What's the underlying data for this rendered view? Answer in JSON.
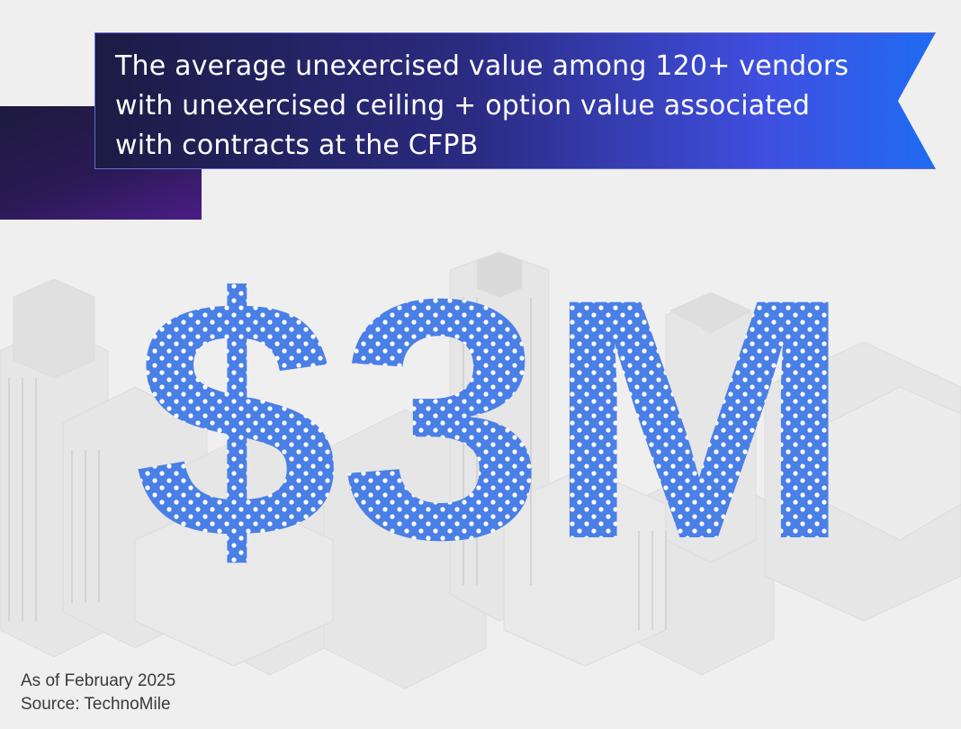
{
  "headline": {
    "line1": "The average unexercised value among 120+ vendors",
    "line2": "with unexercised ceiling + option value associated",
    "line3": "with contracts at the CFPB"
  },
  "big_value": "$3M",
  "footer": {
    "date": "As of February 2025",
    "source": "Source: TechnoMile"
  },
  "colors": {
    "banner_start": "#1b1b44",
    "banner_end": "#1f6cf2",
    "dot_fill": "#4a7fe6",
    "background": "#efefef"
  }
}
